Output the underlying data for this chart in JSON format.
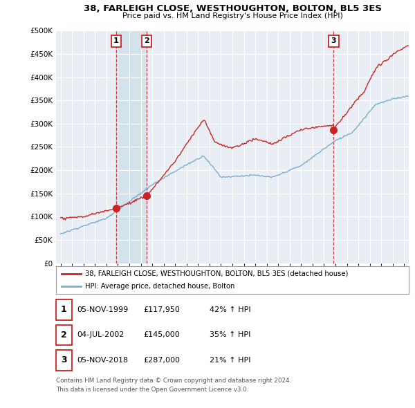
{
  "title": "38, FARLEIGH CLOSE, WESTHOUGHTON, BOLTON, BL5 3ES",
  "subtitle": "Price paid vs. HM Land Registry's House Price Index (HPI)",
  "legend_label_red": "38, FARLEIGH CLOSE, WESTHOUGHTON, BOLTON, BL5 3ES (detached house)",
  "legend_label_blue": "HPI: Average price, detached house, Bolton",
  "footer1": "Contains HM Land Registry data © Crown copyright and database right 2024.",
  "footer2": "This data is licensed under the Open Government Licence v3.0.",
  "transactions": [
    {
      "num": 1,
      "date": "05-NOV-1999",
      "price": "£117,950",
      "pct": "42% ↑ HPI",
      "year": 1999.84
    },
    {
      "num": 2,
      "date": "04-JUL-2002",
      "price": "£145,000",
      "pct": "35% ↑ HPI",
      "year": 2002.5
    },
    {
      "num": 3,
      "date": "05-NOV-2018",
      "price": "£287,000",
      "pct": "21% ↑ HPI",
      "year": 2018.84
    }
  ],
  "transaction_values": [
    117950,
    145000,
    287000
  ],
  "background_color": "#ffffff",
  "plot_bg_color": "#e8eef4",
  "grid_color": "#ffffff",
  "red_color": "#cc2222",
  "blue_color": "#7aadcc",
  "shade_color": "#ccdde8",
  "vline_color": "#cc2222",
  "ylim": [
    0,
    500000
  ],
  "yticks": [
    0,
    50000,
    100000,
    150000,
    200000,
    250000,
    300000,
    350000,
    400000,
    450000,
    500000
  ],
  "xlim_start": 1994.6,
  "xlim_end": 2025.4
}
